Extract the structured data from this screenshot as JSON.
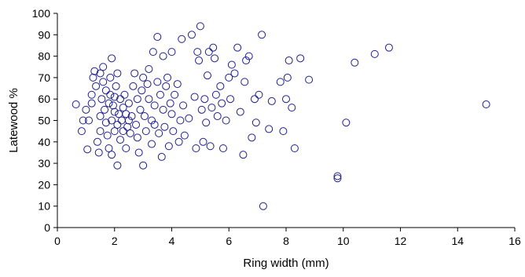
{
  "chart_data": {
    "type": "scatter",
    "title": "",
    "xlabel": "Ring width (mm)",
    "ylabel": "Latewood %",
    "xlim": [
      0,
      16
    ],
    "ylim": [
      0,
      100
    ],
    "xticks": [
      0,
      2,
      4,
      6,
      8,
      10,
      12,
      14,
      16
    ],
    "yticks": [
      0,
      10,
      20,
      30,
      40,
      50,
      60,
      70,
      80,
      90,
      100
    ],
    "grid": false,
    "legend": "none",
    "marker": "open-circle",
    "marker_color": "#1f1f8f",
    "series": [
      {
        "points": [
          [
            0.65,
            57.5
          ],
          [
            0.85,
            45
          ],
          [
            0.9,
            50
          ],
          [
            1.0,
            55
          ],
          [
            1.05,
            36.5
          ],
          [
            1.1,
            50
          ],
          [
            1.2,
            62
          ],
          [
            1.2,
            58
          ],
          [
            1.25,
            70
          ],
          [
            1.3,
            73
          ],
          [
            1.35,
            66
          ],
          [
            1.4,
            40
          ],
          [
            1.45,
            35
          ],
          [
            1.5,
            45
          ],
          [
            1.5,
            52
          ],
          [
            1.5,
            72
          ],
          [
            1.55,
            60
          ],
          [
            1.6,
            75
          ],
          [
            1.6,
            68
          ],
          [
            1.65,
            55
          ],
          [
            1.7,
            64
          ],
          [
            1.7,
            49
          ],
          [
            1.75,
            43
          ],
          [
            1.8,
            58
          ],
          [
            1.8,
            37
          ],
          [
            1.85,
            62
          ],
          [
            1.85,
            70
          ],
          [
            1.9,
            79
          ],
          [
            1.9,
            50
          ],
          [
            1.9,
            34
          ],
          [
            1.95,
            57
          ],
          [
            2.0,
            61
          ],
          [
            2.0,
            54
          ],
          [
            2.0,
            45
          ],
          [
            2.05,
            66
          ],
          [
            2.1,
            72
          ],
          [
            2.1,
            48
          ],
          [
            2.1,
            29
          ],
          [
            2.15,
            53
          ],
          [
            2.2,
            41
          ],
          [
            2.2,
            60
          ],
          [
            2.25,
            50
          ],
          [
            2.3,
            56
          ],
          [
            2.3,
            45
          ],
          [
            2.35,
            62
          ],
          [
            2.4,
            53
          ],
          [
            2.4,
            37
          ],
          [
            2.45,
            47
          ],
          [
            2.5,
            50
          ],
          [
            2.5,
            58
          ],
          [
            2.55,
            44
          ],
          [
            2.6,
            52
          ],
          [
            2.65,
            66
          ],
          [
            2.7,
            72
          ],
          [
            2.75,
            48
          ],
          [
            2.8,
            42
          ],
          [
            2.8,
            60
          ],
          [
            2.85,
            35
          ],
          [
            2.9,
            55
          ],
          [
            2.95,
            64
          ],
          [
            3.0,
            70
          ],
          [
            3.0,
            29
          ],
          [
            3.05,
            52
          ],
          [
            3.1,
            45
          ],
          [
            3.15,
            67
          ],
          [
            3.2,
            60
          ],
          [
            3.2,
            74
          ],
          [
            3.3,
            50
          ],
          [
            3.3,
            39
          ],
          [
            3.35,
            82
          ],
          [
            3.4,
            57
          ],
          [
            3.4,
            48
          ],
          [
            3.5,
            89
          ],
          [
            3.5,
            68
          ],
          [
            3.55,
            44
          ],
          [
            3.6,
            62
          ],
          [
            3.65,
            33
          ],
          [
            3.7,
            80
          ],
          [
            3.7,
            55
          ],
          [
            3.75,
            47
          ],
          [
            3.8,
            66
          ],
          [
            3.85,
            70
          ],
          [
            3.9,
            38
          ],
          [
            3.95,
            58
          ],
          [
            4.0,
            82
          ],
          [
            4.0,
            53
          ],
          [
            4.05,
            45
          ],
          [
            4.1,
            62
          ],
          [
            4.2,
            67
          ],
          [
            4.25,
            40
          ],
          [
            4.3,
            50
          ],
          [
            4.35,
            88
          ],
          [
            4.4,
            57
          ],
          [
            4.45,
            43
          ],
          [
            4.6,
            51
          ],
          [
            4.7,
            90
          ],
          [
            4.8,
            61
          ],
          [
            4.85,
            37
          ],
          [
            4.9,
            82
          ],
          [
            4.95,
            78
          ],
          [
            5.0,
            94
          ],
          [
            5.05,
            55
          ],
          [
            5.1,
            40
          ],
          [
            5.15,
            60
          ],
          [
            5.2,
            49
          ],
          [
            5.25,
            71
          ],
          [
            5.3,
            82
          ],
          [
            5.35,
            38
          ],
          [
            5.4,
            56
          ],
          [
            5.45,
            84
          ],
          [
            5.5,
            79
          ],
          [
            5.55,
            62
          ],
          [
            5.6,
            52
          ],
          [
            5.7,
            66
          ],
          [
            5.75,
            58
          ],
          [
            5.8,
            37
          ],
          [
            5.9,
            50
          ],
          [
            6.0,
            70
          ],
          [
            6.05,
            60
          ],
          [
            6.1,
            76
          ],
          [
            6.2,
            72
          ],
          [
            6.3,
            84
          ],
          [
            6.4,
            54
          ],
          [
            6.5,
            34
          ],
          [
            6.55,
            68
          ],
          [
            6.6,
            78
          ],
          [
            6.7,
            80
          ],
          [
            6.8,
            42
          ],
          [
            6.9,
            60
          ],
          [
            6.95,
            49
          ],
          [
            7.05,
            62
          ],
          [
            7.15,
            90
          ],
          [
            7.2,
            10
          ],
          [
            7.4,
            46
          ],
          [
            7.5,
            59
          ],
          [
            7.8,
            68
          ],
          [
            7.9,
            45
          ],
          [
            8.0,
            60
          ],
          [
            8.05,
            70
          ],
          [
            8.1,
            78
          ],
          [
            8.2,
            56
          ],
          [
            8.3,
            37
          ],
          [
            8.5,
            79
          ],
          [
            8.8,
            69
          ],
          [
            9.8,
            24
          ],
          [
            9.8,
            23
          ],
          [
            10.1,
            49
          ],
          [
            10.4,
            77
          ],
          [
            11.1,
            81
          ],
          [
            11.6,
            84
          ],
          [
            15.0,
            57.5
          ]
        ]
      }
    ]
  }
}
